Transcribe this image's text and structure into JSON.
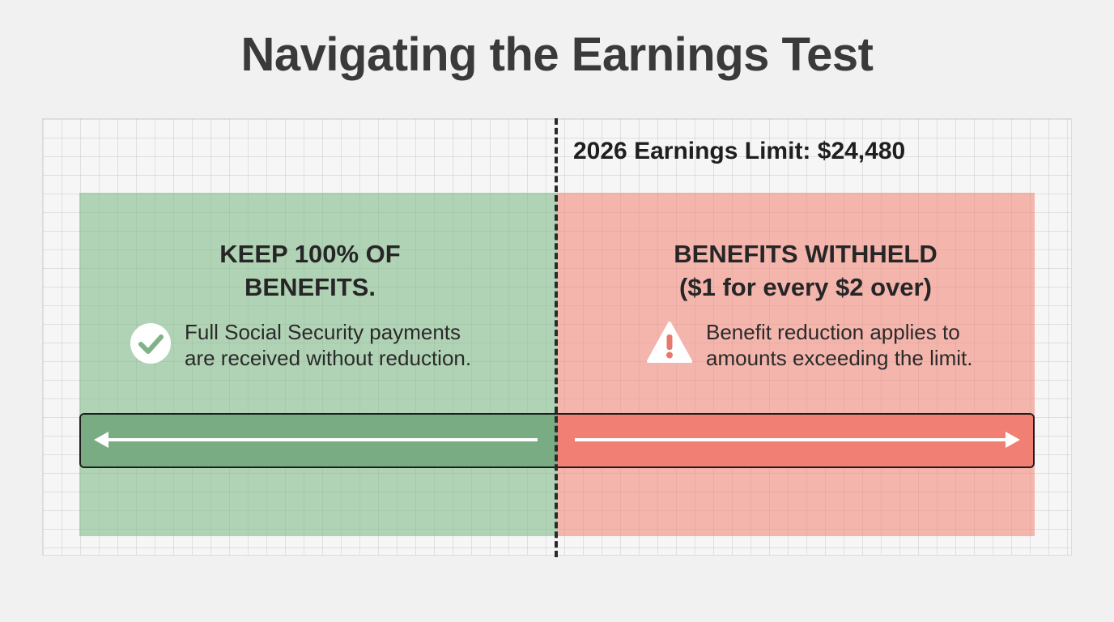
{
  "title": "Navigating the Earnings Test",
  "limit": {
    "label": "2026 Earnings Limit: $24,480"
  },
  "left_zone": {
    "heading_line1": "KEEP 100% OF",
    "heading_line2": "BENEFITS.",
    "note_line1": "Full Social Security payments",
    "note_line2": "are received without reduction.",
    "icon": "check-circle-icon",
    "color": "#80ba87",
    "bar_color": "#79ac83"
  },
  "right_zone": {
    "heading_line1": "BENEFITS WITHHELD",
    "heading_line2": "($1 for every $2 over)",
    "note_line1": "Benefit reduction applies to",
    "note_line2": "amounts exceeding the limit.",
    "icon": "warning-icon",
    "color": "#f38778",
    "bar_color": "#f17f73"
  }
}
